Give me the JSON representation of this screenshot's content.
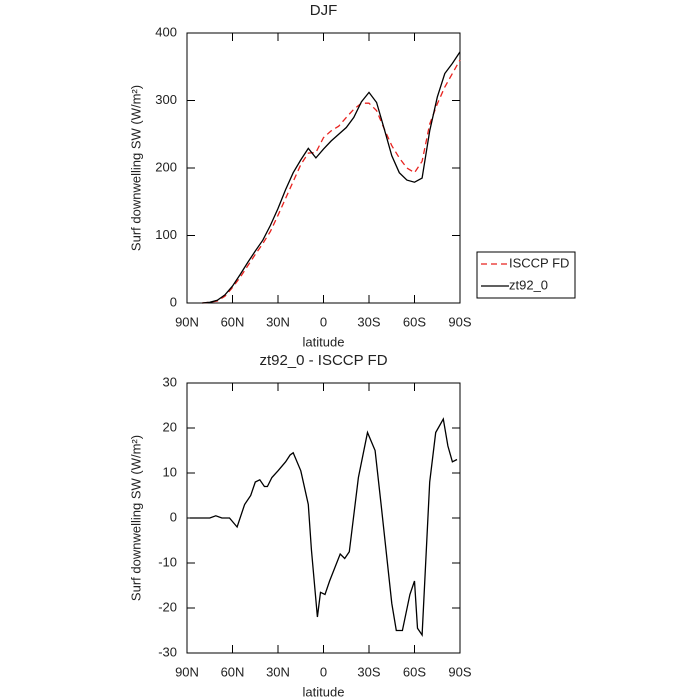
{
  "chart_data": [
    {
      "type": "line",
      "title": "DJF",
      "x_label": "latitude",
      "y_label": "Surf downwelling SW (W/m²)",
      "x": [
        90,
        85,
        80,
        75,
        70,
        65,
        60,
        55,
        50,
        45,
        40,
        35,
        30,
        25,
        20,
        15,
        10,
        5,
        0,
        -5,
        -10,
        -15,
        -20,
        -25,
        -30,
        -35,
        -40,
        -45,
        -50,
        -55,
        -60,
        -65,
        -70,
        -75,
        -80,
        -85,
        -90
      ],
      "series": [
        {
          "name": "ISCCP FD",
          "color": "#e8231f",
          "dash": true,
          "values": [
            null,
            null,
            0,
            1,
            3,
            10,
            23,
            38,
            55,
            72,
            88,
            106,
            130,
            155,
            180,
            205,
            222,
            223,
            245,
            255,
            262,
            275,
            287,
            296,
            296,
            285,
            258,
            233,
            215,
            200,
            193,
            210,
            265,
            295,
            320,
            340,
            360
          ]
        },
        {
          "name": "zt92_0",
          "color": "#000000",
          "dash": false,
          "values": [
            null,
            null,
            0,
            1,
            4,
            12,
            25,
            42,
            60,
            77,
            93,
            115,
            140,
            168,
            193,
            212,
            229,
            215,
            228,
            240,
            250,
            260,
            275,
            298,
            312,
            297,
            258,
            218,
            193,
            182,
            179,
            185,
            255,
            305,
            340,
            355,
            372
          ]
        }
      ],
      "xlim": [
        90,
        -90
      ],
      "xticks": [
        {
          "value": 90,
          "label": "90N"
        },
        {
          "value": 60,
          "label": "60N"
        },
        {
          "value": 30,
          "label": "30N"
        },
        0,
        {
          "value": -30,
          "label": "30S"
        },
        {
          "value": -60,
          "label": "60S"
        },
        {
          "value": -90,
          "label": "90S"
        }
      ],
      "ylim": [
        0,
        400
      ],
      "yticks": [
        0,
        100,
        200,
        300,
        400
      ],
      "legend": "right"
    },
    {
      "type": "line",
      "title": "zt92_0 - ISCCP FD",
      "x_label": "latitude",
      "y_label": "Surf downwelling SW (W/m²)",
      "x": [
        88,
        80,
        75,
        71,
        67,
        62,
        57,
        52,
        48,
        45,
        42,
        39,
        37,
        34,
        30,
        25,
        22,
        20,
        15,
        10,
        8,
        4,
        2,
        -1,
        -4,
        -11,
        -14,
        -17,
        -23,
        -29,
        -34,
        -38,
        -45,
        -48,
        -52,
        -57,
        -60,
        -62,
        -65,
        -70,
        -74,
        -79,
        -82,
        -85,
        -88
      ],
      "color": "#000000",
      "values": [
        0,
        0,
        0,
        0.5,
        0,
        0,
        -2,
        3,
        5,
        8,
        8.5,
        7,
        7,
        9,
        10.5,
        12.5,
        14,
        14.5,
        10.5,
        3,
        -7,
        -22,
        -16.5,
        -17,
        -14,
        -8,
        -9,
        -7.5,
        9,
        19,
        15,
        3,
        -19,
        -25,
        -25,
        -17,
        -14,
        -24.5,
        -26,
        8,
        19,
        22,
        16,
        12.5,
        13
      ],
      "xlim": [
        90,
        -90
      ],
      "xticks": [
        {
          "value": 90,
          "label": "90N"
        },
        {
          "value": 60,
          "label": "60N"
        },
        {
          "value": 30,
          "label": "30N"
        },
        0,
        {
          "value": -30,
          "label": "30S"
        },
        {
          "value": -60,
          "label": "60S"
        },
        {
          "value": -90,
          "label": "90S"
        }
      ],
      "ylim": [
        -30,
        30
      ],
      "yticks": [
        -30,
        -20,
        -10,
        0,
        10,
        20,
        30
      ]
    }
  ]
}
